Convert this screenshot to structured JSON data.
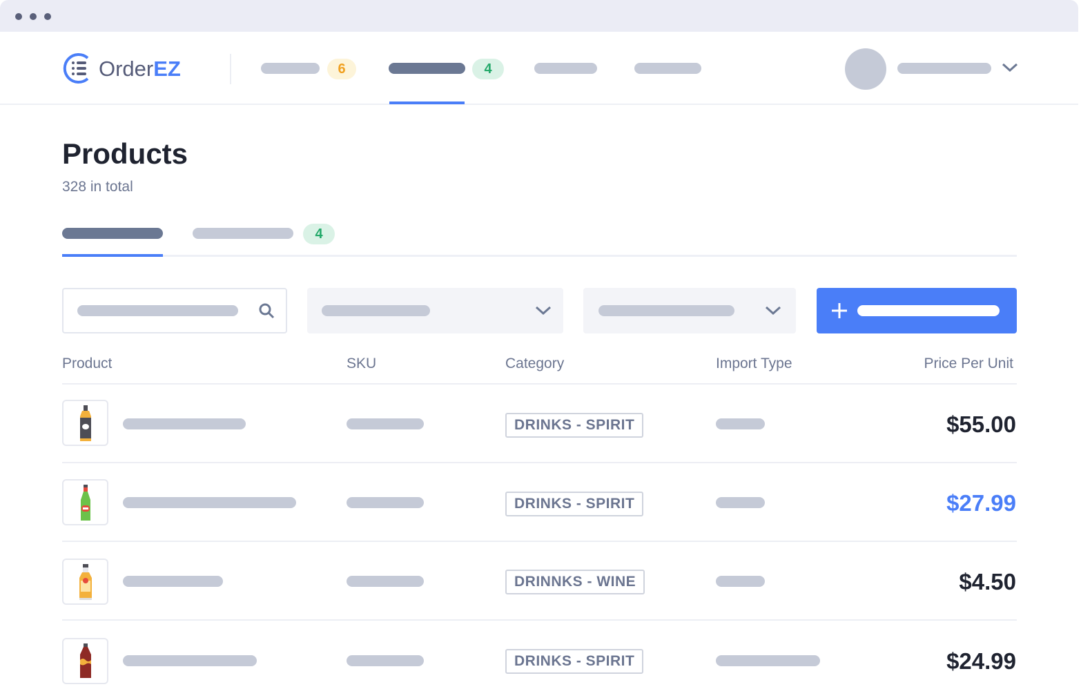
{
  "app": {
    "brand_part1": "Order",
    "brand_part2": "EZ"
  },
  "nav": {
    "badges": [
      "6",
      "4"
    ],
    "accent": "#4a7ef8"
  },
  "page": {
    "title": "Products",
    "count": "328 in total",
    "tab_badge": "4"
  },
  "table": {
    "headers": [
      "Product",
      "SKU",
      "Category",
      "Import Type",
      "Price Per Unit"
    ],
    "rows": [
      {
        "icon": "whiskey-bottle-icon",
        "category": "DRINKS - SPIRIT",
        "price": "$55.00",
        "highlight": false
      },
      {
        "icon": "beer-bottle-icon",
        "category": "DRINKS - SPIRIT",
        "price": "$27.99",
        "highlight": true
      },
      {
        "icon": "liquor-bottle-icon",
        "category": "DRINNKS - WINE",
        "price": "$4.50",
        "highlight": false
      },
      {
        "icon": "soda-bottle-icon",
        "category": "DRINKS - SPIRIT",
        "price": "$24.99",
        "highlight": false
      }
    ]
  }
}
